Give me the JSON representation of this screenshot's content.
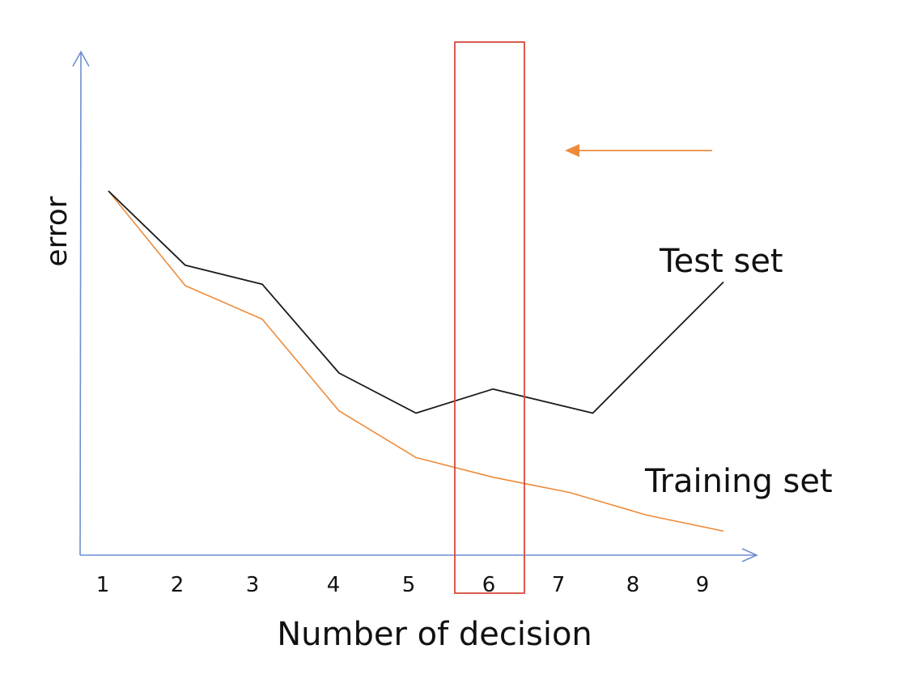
{
  "chart_data": {
    "type": "line",
    "xlabel": "Number of decision",
    "ylabel": "error",
    "categories": [
      "1",
      "2",
      "3",
      "4",
      "5",
      "6",
      "7",
      "8",
      "9"
    ],
    "series": [
      {
        "name": "Test set",
        "color": "#1a1a1a",
        "x": [
          1,
          2,
          3,
          4,
          5,
          6,
          7.3,
          8.1,
          9
        ],
        "y": [
          50,
          39.8,
          37.2,
          25,
          19.5,
          22.8,
          19.5,
          28,
          37.5
        ]
      },
      {
        "name": "Training set",
        "color": "#ed8b3b",
        "x": [
          1,
          2,
          3,
          4,
          5,
          6,
          7,
          8,
          9
        ],
        "y": [
          50,
          37,
          32.4,
          19.8,
          13.4,
          10.7,
          8.6,
          5.5,
          3.3
        ]
      }
    ],
    "highlight": {
      "x_from": 5.5,
      "x_to": 6.4,
      "color": "#d9483b"
    },
    "arrow_color": "#ed8b3b",
    "axis_color": "#6f8fd0",
    "grid": false
  }
}
